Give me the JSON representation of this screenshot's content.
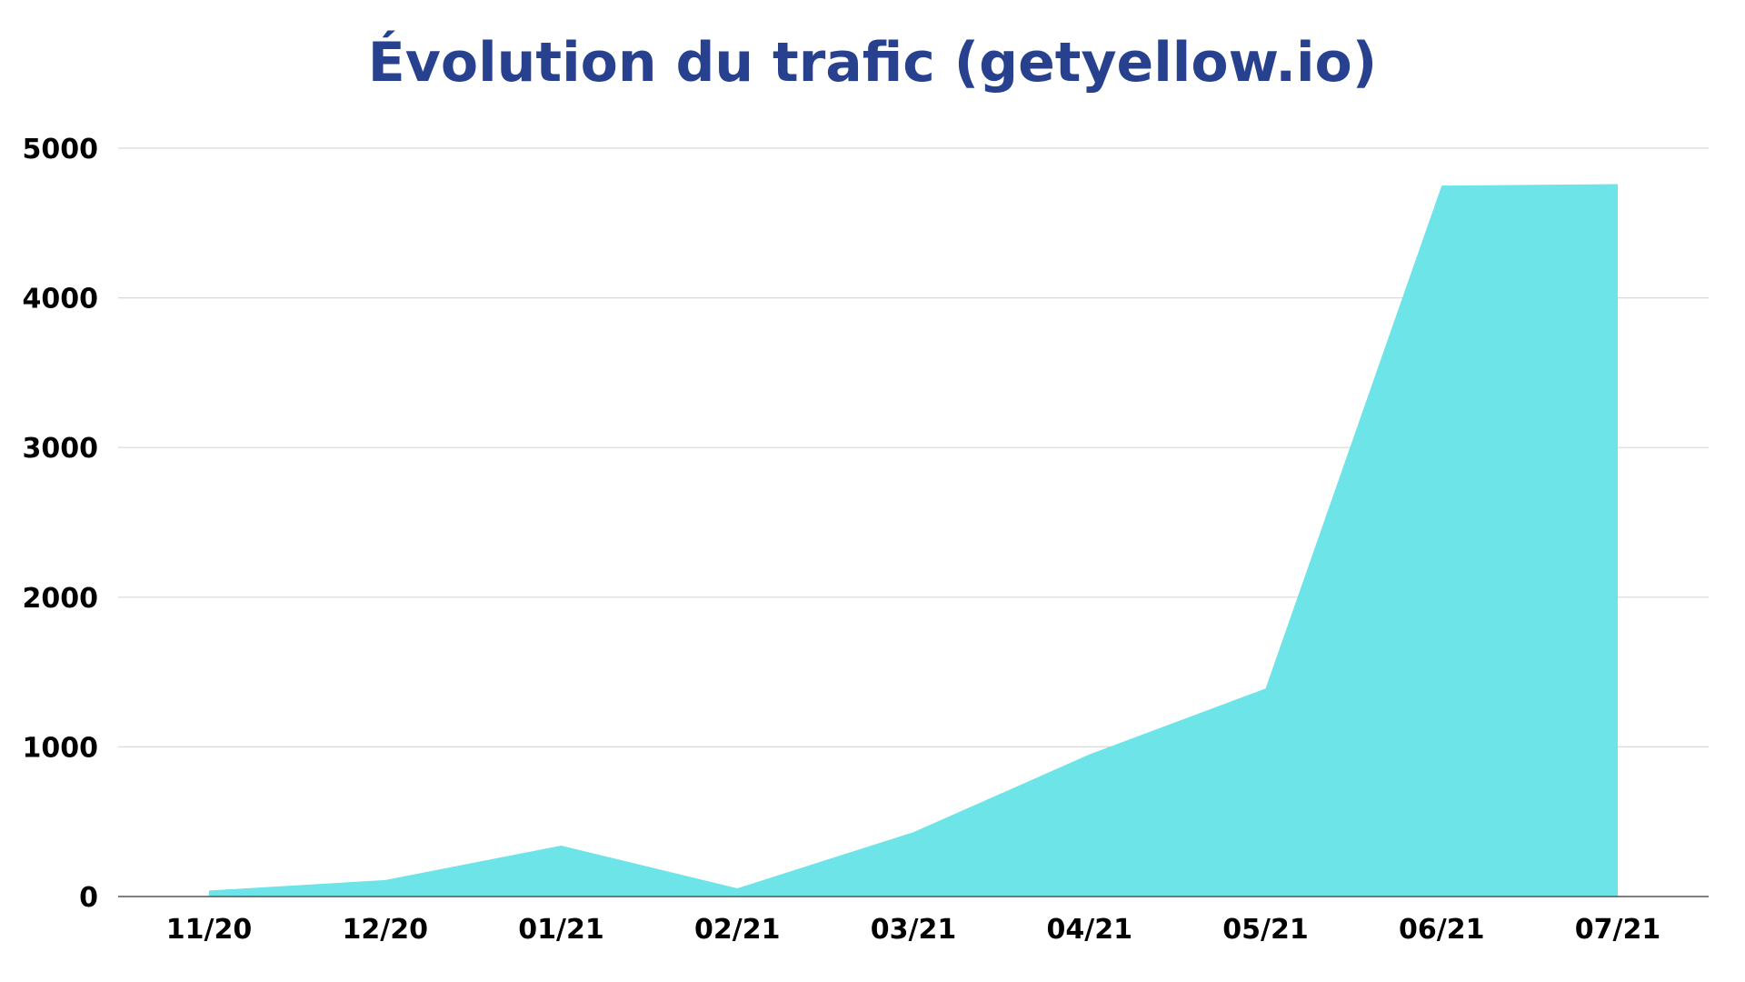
{
  "chart_data": {
    "type": "area",
    "title": "Évolution du trafic (getyellow.io)",
    "xlabel": "",
    "ylabel": "",
    "categories": [
      "11/20",
      "12/20",
      "01/21",
      "02/21",
      "03/21",
      "04/21",
      "05/21",
      "06/21",
      "07/21"
    ],
    "series": [
      {
        "values": [
          40,
          110,
          340,
          55,
          430,
          950,
          1390,
          4750,
          4760
        ],
        "color": "#6de4e8"
      }
    ],
    "ylim": [
      0,
      5000
    ],
    "yticks": [
      0,
      1000,
      2000,
      3000,
      4000,
      5000
    ],
    "ytick_labels": [
      "0",
      "1000",
      "2000",
      "3000",
      "4000",
      "5000"
    ],
    "grid": true,
    "legend": "none",
    "colors": {
      "title": "#27418e",
      "area": "#6de4e8",
      "grid": "#d9d9d9",
      "axis": "#555555",
      "labels": "#000000"
    }
  }
}
